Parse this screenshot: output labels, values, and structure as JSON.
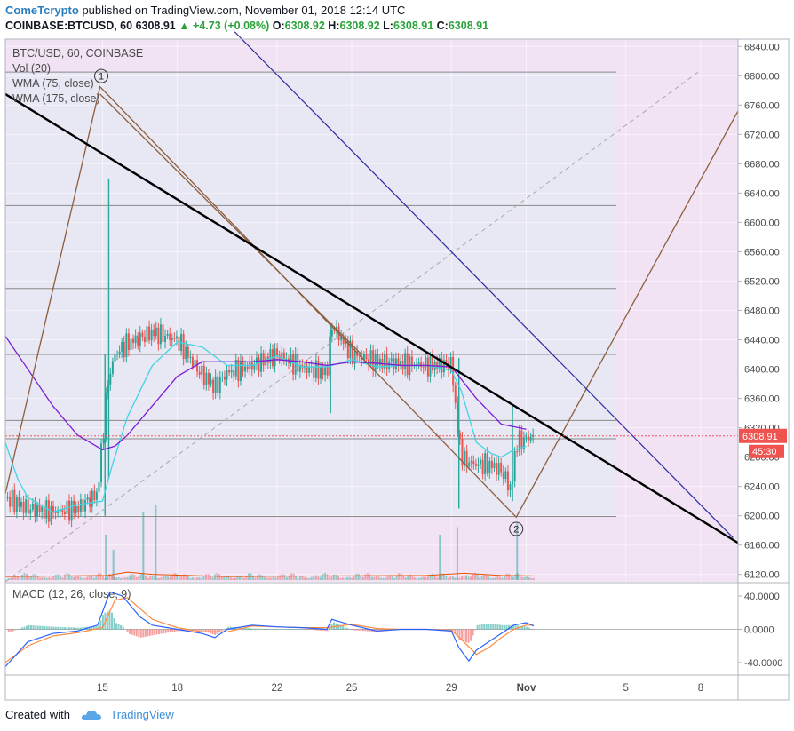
{
  "header": {
    "author": "ComeTcrypto",
    "published": "published on TradingView.com, November 01, 2018 12:14 UTC"
  },
  "ohlc": {
    "symbol": "COINBASE:BTCUSD, 60",
    "last": "6308.91",
    "change": "▲ +4.73 (+0.08%)",
    "o_label": "O:",
    "o": "6308.92",
    "h_label": "H:",
    "h": "6308.92",
    "l_label": "L:",
    "l": "6308.91",
    "c_label": "C:",
    "c": "6308.91"
  },
  "legend": {
    "main_title": "BTC/USD, 60, COINBASE",
    "indicators": [
      "Vol (20)",
      "WMA (75, close)",
      "WMA (175, close)"
    ],
    "macd": "MACD (12, 26, close, 9)"
  },
  "footer": {
    "created_with": "Created with",
    "brand": "TradingView"
  },
  "colors": {
    "up": "#26a69a",
    "down": "#ef5350",
    "wma75": "#7c1fd6",
    "wma175": "#42d3e3",
    "trend_black": "#000000",
    "trend_blue": "#2b2ba1",
    "brown": "#8b5e3c",
    "price_tag": "#ef5350",
    "background_left": "#e8e7f4",
    "background_right": "#f1e3f4"
  },
  "chart_data": [
    {
      "type": "candlestick",
      "title": "BTC/USD, 60, COINBASE",
      "ylim": [
        6110,
        6850
      ],
      "y_ticks": [
        "6120.00",
        "6160.00",
        "6200.00",
        "6240.00",
        "6280.00",
        "6320.00",
        "6360.00",
        "6400.00",
        "6440.00",
        "6480.00",
        "6520.00",
        "6560.00",
        "6600.00",
        "6640.00",
        "6680.00",
        "6720.00",
        "6760.00",
        "6800.00",
        "6840.00"
      ],
      "x_ticks": [
        "15",
        "18",
        "22",
        "25",
        "29",
        "Nov",
        "5",
        "8"
      ],
      "x_tick_days": [
        15,
        18,
        22,
        25,
        29,
        32,
        36,
        39
      ],
      "xlim_days": [
        11.1,
        40.5
      ],
      "last_price": "6308.91",
      "countdown": "45:30",
      "wma_75": [
        [
          11.1,
          6445
        ],
        [
          12,
          6400
        ],
        [
          13,
          6350
        ],
        [
          14,
          6310
        ],
        [
          15,
          6290
        ],
        [
          15.5,
          6295
        ],
        [
          16,
          6310
        ],
        [
          17,
          6350
        ],
        [
          18,
          6390
        ],
        [
          19,
          6410
        ],
        [
          20,
          6410
        ],
        [
          21,
          6410
        ],
        [
          22,
          6413
        ],
        [
          23,
          6410
        ],
        [
          24,
          6405
        ],
        [
          25,
          6410
        ],
        [
          26,
          6408
        ],
        [
          27,
          6405
        ],
        [
          28,
          6405
        ],
        [
          29,
          6403
        ],
        [
          30,
          6360
        ],
        [
          31,
          6325
        ],
        [
          32,
          6318
        ]
      ],
      "wma_175": [
        [
          11.1,
          6300
        ],
        [
          11.6,
          6250
        ],
        [
          12,
          6225
        ],
        [
          13,
          6205
        ],
        [
          14,
          6215
        ],
        [
          15,
          6220
        ],
        [
          15.4,
          6270
        ],
        [
          16,
          6335
        ],
        [
          17,
          6405
        ],
        [
          18,
          6437
        ],
        [
          19,
          6430
        ],
        [
          20,
          6405
        ],
        [
          21,
          6405
        ],
        [
          22,
          6418
        ],
        [
          23,
          6403
        ],
        [
          24,
          6403
        ],
        [
          25,
          6413
        ],
        [
          26,
          6403
        ],
        [
          27,
          6405
        ],
        [
          28,
          6405
        ],
        [
          29,
          6398
        ],
        [
          29.4,
          6370
        ],
        [
          30,
          6300
        ],
        [
          30.6,
          6285
        ],
        [
          31,
          6280
        ],
        [
          31.5,
          6290
        ],
        [
          32,
          6295
        ]
      ],
      "candle_envelope": [
        [
          11.1,
          6225
        ],
        [
          12,
          6210
        ],
        [
          13,
          6205
        ],
        [
          14,
          6210
        ],
        [
          14.8,
          6230
        ],
        [
          15.2,
          6380
        ],
        [
          15.5,
          6420
        ],
        [
          16,
          6435
        ],
        [
          17,
          6450
        ],
        [
          18,
          6440
        ],
        [
          18.8,
          6400
        ],
        [
          19.5,
          6375
        ],
        [
          20,
          6395
        ],
        [
          21,
          6405
        ],
        [
          22,
          6420
        ],
        [
          23,
          6402
        ],
        [
          24,
          6395
        ],
        [
          24.2,
          6460
        ],
        [
          25,
          6420
        ],
        [
          26,
          6410
        ],
        [
          27,
          6408
        ],
        [
          28,
          6405
        ],
        [
          29,
          6407
        ],
        [
          29.3,
          6300
        ],
        [
          29.5,
          6275
        ],
        [
          30,
          6270
        ],
        [
          30.5,
          6270
        ],
        [
          31,
          6262
        ],
        [
          31.4,
          6235
        ],
        [
          31.6,
          6300
        ],
        [
          32,
          6305
        ],
        [
          32.3,
          6308.91
        ]
      ],
      "wicks": [
        [
          15.25,
          6250,
          6660
        ],
        [
          15.1,
          6200,
          6420
        ],
        [
          24.15,
          6340,
          6462
        ],
        [
          29.3,
          6210,
          6415
        ],
        [
          31.45,
          6220,
          6350
        ]
      ],
      "horizontal_levels": [
        6805,
        6623,
        6510,
        6420,
        6330,
        6305,
        6199
      ],
      "trend_black": [
        [
          11.1,
          6775
        ],
        [
          40.5,
          6163
        ]
      ],
      "trend_blue": [
        [
          20.3,
          6860
        ],
        [
          40.3,
          6170
        ]
      ],
      "dashed_diag": [
        [
          11.1,
          6110
        ],
        [
          38.9,
          6805
        ]
      ],
      "pattern_brown": [
        [
          11.1,
          6230
        ],
        [
          14.9,
          6785
        ],
        [
          31.6,
          6198
        ],
        [
          40.5,
          6752
        ]
      ],
      "markers": [
        {
          "label": "1",
          "day": 14.95,
          "value": 6785
        },
        {
          "label": "2",
          "day": 31.6,
          "value": 6199
        }
      ]
    },
    {
      "type": "bar",
      "title": "Vol (20)",
      "volume_spikes": [
        [
          15.1,
          0.6
        ],
        [
          15.4,
          0.4
        ],
        [
          16.6,
          0.9
        ],
        [
          17.1,
          1.0
        ],
        [
          28.5,
          0.6
        ],
        [
          29.2,
          0.7
        ],
        [
          31.6,
          0.75
        ]
      ],
      "volume_ma": [
        [
          11.1,
          0.15
        ],
        [
          15.2,
          0.2
        ],
        [
          16,
          0.35
        ],
        [
          17,
          0.25
        ],
        [
          20,
          0.15
        ],
        [
          24,
          0.18
        ],
        [
          28,
          0.2
        ],
        [
          29.5,
          0.3
        ],
        [
          31,
          0.2
        ],
        [
          32.3,
          0.18
        ]
      ]
    },
    {
      "type": "line",
      "title": "MACD (12, 26, close, 9)",
      "ylim": [
        -55,
        55
      ],
      "y_ticks": [
        "40.0000",
        "0.0000",
        "-40.0000"
      ],
      "macd": [
        [
          11.1,
          -45
        ],
        [
          12,
          -15
        ],
        [
          13,
          -5
        ],
        [
          14,
          -2
        ],
        [
          14.8,
          5
        ],
        [
          15.3,
          45
        ],
        [
          15.8,
          40
        ],
        [
          16.5,
          15
        ],
        [
          17,
          5
        ],
        [
          18,
          0
        ],
        [
          19,
          -5
        ],
        [
          19.5,
          -10
        ],
        [
          20,
          0
        ],
        [
          21,
          5
        ],
        [
          22,
          3
        ],
        [
          23,
          2
        ],
        [
          24,
          0
        ],
        [
          24.2,
          12
        ],
        [
          25,
          5
        ],
        [
          26,
          -2
        ],
        [
          27,
          0
        ],
        [
          28,
          0
        ],
        [
          29,
          -2
        ],
        [
          29.3,
          -22
        ],
        [
          29.7,
          -38
        ],
        [
          30,
          -25
        ],
        [
          30.5,
          -15
        ],
        [
          31,
          -5
        ],
        [
          31.5,
          5
        ],
        [
          32,
          8
        ],
        [
          32.3,
          4
        ]
      ],
      "signal": [
        [
          11.1,
          -40
        ],
        [
          12,
          -20
        ],
        [
          13,
          -8
        ],
        [
          14,
          -4
        ],
        [
          15,
          2
        ],
        [
          15.5,
          35
        ],
        [
          16,
          38
        ],
        [
          16.5,
          25
        ],
        [
          17,
          12
        ],
        [
          18,
          2
        ],
        [
          19,
          -3
        ],
        [
          20,
          -3
        ],
        [
          21,
          4
        ],
        [
          22,
          3
        ],
        [
          23,
          2
        ],
        [
          24,
          2
        ],
        [
          25,
          6
        ],
        [
          26,
          1
        ],
        [
          27,
          0
        ],
        [
          28,
          0
        ],
        [
          29,
          -1
        ],
        [
          29.5,
          -15
        ],
        [
          30,
          -30
        ],
        [
          30.5,
          -22
        ],
        [
          31,
          -10
        ],
        [
          31.5,
          0
        ],
        [
          32,
          5
        ],
        [
          32.3,
          5
        ]
      ],
      "histogram": [
        [
          15.2,
          25
        ],
        [
          15.6,
          10
        ],
        [
          16.2,
          -8
        ],
        [
          17,
          -6
        ],
        [
          18.5,
          -4
        ],
        [
          19.5,
          -7
        ],
        [
          21,
          2
        ],
        [
          24.2,
          6
        ],
        [
          29.4,
          -10
        ],
        [
          29.8,
          -12
        ],
        [
          30.5,
          6
        ],
        [
          31.5,
          5
        ]
      ]
    }
  ]
}
